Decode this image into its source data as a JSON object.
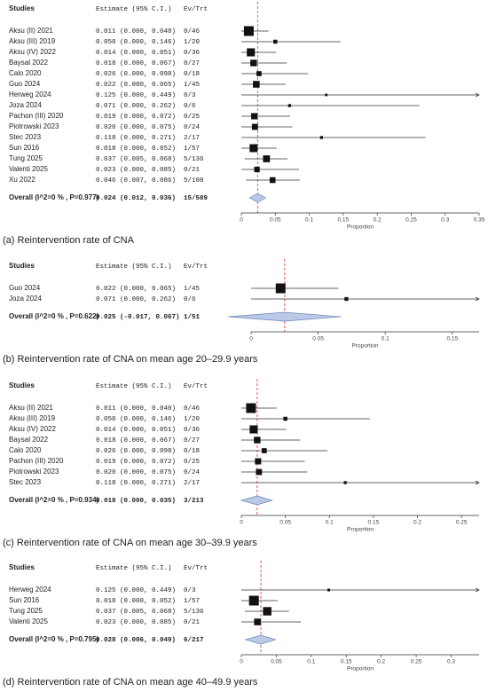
{
  "chart_data": [
    {
      "type": "forest",
      "columns": [
        "Studies",
        "Estimate (95% C.I.)",
        "Ev/Trt"
      ],
      "studies": [
        {
          "name": "Aksu (II) 2021",
          "estimate": 0.011,
          "lower": 0,
          "upper": 0.04,
          "ci_label": "0.011 (0.000, 0.040)",
          "events": "0/46"
        },
        {
          "name": "Aksu (III) 2019",
          "estimate": 0.05,
          "lower": 0,
          "upper": 0.146,
          "ci_label": "0.050 (0.000, 0.146)",
          "events": "1/20"
        },
        {
          "name": "Aksu (IV) 2022",
          "estimate": 0.014,
          "lower": 0,
          "upper": 0.051,
          "ci_label": "0.014 (0.000, 0.051)",
          "events": "0/36"
        },
        {
          "name": "Baysal 2022",
          "estimate": 0.018,
          "lower": 0,
          "upper": 0.067,
          "ci_label": "0.018 (0.000, 0.067)",
          "events": "0/27"
        },
        {
          "name": "Calo 2020",
          "estimate": 0.026,
          "lower": 0,
          "upper": 0.098,
          "ci_label": "0.026 (0.000, 0.098)",
          "events": "0/18"
        },
        {
          "name": "Guo 2024",
          "estimate": 0.022,
          "lower": 0,
          "upper": 0.065,
          "ci_label": "0.022 (0.000, 0.065)",
          "events": "1/45"
        },
        {
          "name": "Herweg 2024",
          "estimate": 0.125,
          "lower": 0,
          "upper": 0.449,
          "ci_label": "0.125 (0.000, 0.449)",
          "events": "0/3"
        },
        {
          "name": "Joza 2024",
          "estimate": 0.071,
          "lower": 0,
          "upper": 0.262,
          "ci_label": "0.071 (0.000, 0.262)",
          "events": "0/6"
        },
        {
          "name": "Pachon (III) 2020",
          "estimate": 0.019,
          "lower": 0,
          "upper": 0.072,
          "ci_label": "0.019 (0.000, 0.072)",
          "events": "0/25"
        },
        {
          "name": "Piotrowski 2023",
          "estimate": 0.02,
          "lower": 0,
          "upper": 0.075,
          "ci_label": "0.020 (0.000, 0.075)",
          "events": "0/24"
        },
        {
          "name": "Stec 2023",
          "estimate": 0.118,
          "lower": 0,
          "upper": 0.271,
          "ci_label": "0.118 (0.000, 0.271)",
          "events": "2/17"
        },
        {
          "name": "Sun 2016",
          "estimate": 0.018,
          "lower": 0,
          "upper": 0.052,
          "ci_label": "0.018 (0.000, 0.052)",
          "events": "1/57"
        },
        {
          "name": "Tung 2025",
          "estimate": 0.037,
          "lower": 0.005,
          "upper": 0.068,
          "ci_label": "0.037 (0.005, 0.068)",
          "events": "5/136"
        },
        {
          "name": "Valenti 2025",
          "estimate": 0.023,
          "lower": 0,
          "upper": 0.085,
          "ci_label": "0.023 (0.000, 0.085)",
          "events": "0/21"
        },
        {
          "name": "Xu 2022",
          "estimate": 0.046,
          "lower": 0.007,
          "upper": 0.086,
          "ci_label": "0.046 (0.007, 0.086)",
          "events": "5/108"
        }
      ],
      "overall": {
        "name": "Overall (I^2=0 % , P=0.977)",
        "estimate": 0.024,
        "lower": 0.012,
        "upper": 0.036,
        "ci_label": "0.024 (0.012, 0.036)",
        "events": "15/589"
      },
      "xlim": [
        0,
        0.35
      ],
      "xticks": [
        0,
        0.05,
        0.1,
        0.15,
        0.2,
        0.25,
        0.3,
        0.35
      ],
      "xlabel": "Proportion",
      "caption": "(a) Reintervention rate of CNA"
    },
    {
      "type": "forest",
      "columns": [
        "Studies",
        "Estimate (95% C.I.)",
        "Ev/Trt"
      ],
      "studies": [
        {
          "name": "Guo 2024",
          "estimate": 0.022,
          "lower": 0,
          "upper": 0.065,
          "ci_label": "0.022 (0.000, 0.065)",
          "events": "1/45"
        },
        {
          "name": "Joza 2024",
          "estimate": 0.071,
          "lower": 0,
          "upper": 0.262,
          "ci_label": "0.071 (0.000, 0.262)",
          "events": "0/6"
        }
      ],
      "overall": {
        "name": "Overall (I^2=0 % , P=0.622)",
        "estimate": 0.025,
        "lower": -0.017,
        "upper": 0.067,
        "ci_label": "0.025 (-0.017, 0.067)",
        "events": "1/51"
      },
      "xlim": [
        -0.0073,
        0.17
      ],
      "xticks": [
        0,
        0.05,
        0.1,
        0.15
      ],
      "xlabel": "Proportion",
      "caption": "(b) Reintervention rate of CNA on mean age 20–29.9 years"
    },
    {
      "type": "forest",
      "columns": [
        "Studies",
        "Estimate (95% C.I.)",
        "Ev/Trt"
      ],
      "studies": [
        {
          "name": "Aksu (II) 2021",
          "estimate": 0.011,
          "lower": 0,
          "upper": 0.04,
          "ci_label": "0.011 (0.000, 0.040)",
          "events": "0/46"
        },
        {
          "name": "Aksu (III) 2019",
          "estimate": 0.05,
          "lower": 0,
          "upper": 0.146,
          "ci_label": "0.050 (0.000, 0.146)",
          "events": "1/20"
        },
        {
          "name": "Aksu (IV) 2022",
          "estimate": 0.014,
          "lower": 0,
          "upper": 0.051,
          "ci_label": "0.014 (0.000, 0.051)",
          "events": "0/36"
        },
        {
          "name": "Baysal 2022",
          "estimate": 0.018,
          "lower": 0,
          "upper": 0.067,
          "ci_label": "0.018 (0.000, 0.067)",
          "events": "0/27"
        },
        {
          "name": "Calo 2020",
          "estimate": 0.026,
          "lower": 0,
          "upper": 0.098,
          "ci_label": "0.026 (0.000, 0.098)",
          "events": "0/18"
        },
        {
          "name": "Pachon (III) 2020",
          "estimate": 0.019,
          "lower": 0,
          "upper": 0.072,
          "ci_label": "0.019 (0.000, 0.072)",
          "events": "0/25"
        },
        {
          "name": "Piotrowski 2023",
          "estimate": 0.02,
          "lower": 0,
          "upper": 0.075,
          "ci_label": "0.020 (0.000, 0.075)",
          "events": "0/24"
        },
        {
          "name": "Stec 2023",
          "estimate": 0.118,
          "lower": 0,
          "upper": 0.271,
          "ci_label": "0.118 (0.000, 0.271)",
          "events": "2/17"
        }
      ],
      "overall": {
        "name": "Overall (I^2=0 % , P=0.934)",
        "estimate": 0.018,
        "lower": 0,
        "upper": 0.035,
        "ci_label": "0.018 (0.000, 0.035)",
        "events": "3/213"
      },
      "xlim": [
        0,
        0.27
      ],
      "xticks": [
        0,
        0.05,
        0.1,
        0.15,
        0.2,
        0.25
      ],
      "xlabel": "Proportion",
      "caption": "(c) Reintervention rate of CNA on mean age 30–39.9 years"
    },
    {
      "type": "forest",
      "columns": [
        "Studies",
        "Estimate (95% C.I.)",
        "Ev/Trt"
      ],
      "studies": [
        {
          "name": "Herweg 2024",
          "estimate": 0.125,
          "lower": 0,
          "upper": 0.449,
          "ci_label": "0.125 (0.000, 0.449)",
          "events": "0/3"
        },
        {
          "name": "Sun 2016",
          "estimate": 0.018,
          "lower": 0,
          "upper": 0.052,
          "ci_label": "0.018 (0.000, 0.052)",
          "events": "1/57"
        },
        {
          "name": "Tung 2025",
          "estimate": 0.037,
          "lower": 0.005,
          "upper": 0.068,
          "ci_label": "0.037 (0.005, 0.068)",
          "events": "5/136"
        },
        {
          "name": "Valenti 2025",
          "estimate": 0.023,
          "lower": 0,
          "upper": 0.085,
          "ci_label": "0.023 (0.000, 0.085)",
          "events": "0/21"
        }
      ],
      "overall": {
        "name": "Overall (I^2=0 % , P=0.795)",
        "estimate": 0.028,
        "lower": 0.006,
        "upper": 0.049,
        "ci_label": "0.028 (0.006, 0.049)",
        "events": "6/217"
      },
      "xlim": [
        0,
        0.34
      ],
      "xticks": [
        0,
        0.05,
        0.1,
        0.15,
        0.2,
        0.25,
        0.3
      ],
      "xlabel": "Proportion",
      "caption": "(d) Reintervention rate of CNA on mean age 40–49.9 years"
    }
  ]
}
